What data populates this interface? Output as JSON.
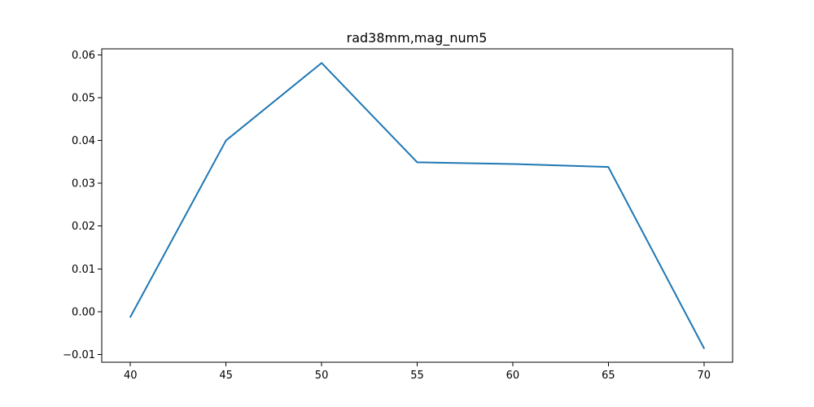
{
  "chart_data": {
    "type": "line",
    "title": "rad38mm,mag_num5",
    "xlabel": "",
    "ylabel": "",
    "x": [
      40,
      45,
      50,
      55,
      60,
      65,
      70
    ],
    "series": [
      {
        "values": [
          -0.0012,
          0.04,
          0.0581,
          0.0349,
          0.0345,
          0.0338,
          -0.0085
        ],
        "color": "#1f77b4"
      }
    ],
    "xlim": [
      38.5,
      71.5
    ],
    "ylim": [
      -0.0118,
      0.0614
    ],
    "x_ticks": [
      40,
      45,
      50,
      55,
      60,
      65,
      70
    ],
    "x_tick_labels": [
      "40",
      "45",
      "50",
      "55",
      "60",
      "65",
      "70"
    ],
    "y_ticks": [
      -0.01,
      0.0,
      0.01,
      0.02,
      0.03,
      0.04,
      0.05,
      0.06
    ],
    "y_tick_labels": [
      "−0.01",
      "0.00",
      "0.01",
      "0.02",
      "0.03",
      "0.04",
      "0.05",
      "0.06"
    ],
    "grid": false,
    "legend": "none"
  }
}
